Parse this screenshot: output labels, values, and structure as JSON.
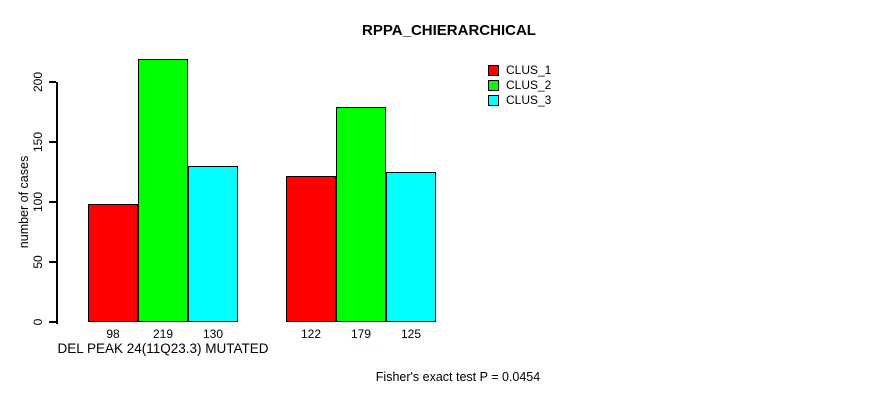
{
  "title": "RPPA_CHIERARCHICAL",
  "footer_note": "Fisher's exact test P = 0.0454",
  "chart_data": {
    "type": "bar",
    "title": "RPPA_CHIERARCHICAL",
    "ylabel": "number of cases",
    "categories": [
      "DEL PEAK 24(11Q23.3) MUTATED",
      ""
    ],
    "series": [
      {
        "name": "CLUS_1",
        "color": "#FF0000",
        "values": [
          98,
          122
        ]
      },
      {
        "name": "CLUS_2",
        "color": "#00FF00",
        "values": [
          219,
          179
        ]
      },
      {
        "name": "CLUS_3",
        "color": "#00FFFF",
        "values": [
          130,
          125
        ]
      }
    ],
    "bar_value_labels": [
      [
        98,
        219,
        130
      ],
      [
        122,
        179,
        125
      ]
    ],
    "yticks": [
      0,
      50,
      100,
      150,
      200
    ],
    "ylim": [
      0,
      230
    ],
    "grid": false,
    "legend_position": "top-right",
    "annotation": "Fisher's exact test P = 0.0454",
    "background_color": "#FFFFFF",
    "axis_color": "#000000"
  }
}
